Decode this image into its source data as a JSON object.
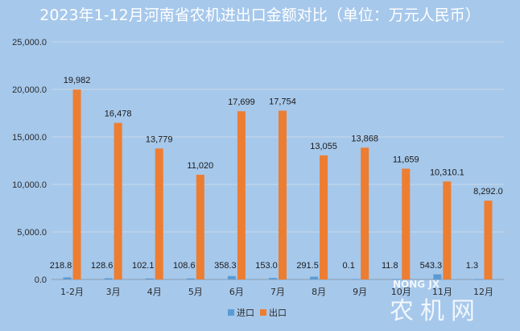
{
  "chart_data": {
    "type": "bar",
    "title": "2023年1-12月河南省农机进出口金额对比（单位：万元人民币）",
    "categories": [
      "1-2月",
      "3月",
      "4月",
      "5月",
      "6月",
      "7月",
      "8月",
      "9月",
      "10月",
      "11月",
      "12月"
    ],
    "series": [
      {
        "name": "进口",
        "color": "#5b9bd5",
        "values": [
          218.8,
          128.6,
          102.1,
          108.6,
          358.3,
          153.0,
          291.5,
          0.1,
          11.8,
          543.3,
          1.3
        ],
        "labels": [
          "218.8",
          "128.6",
          "102.1",
          "108.6",
          "358.3",
          "153.0",
          "291.5",
          "0.1",
          "11.8",
          "543.3",
          "1.3"
        ]
      },
      {
        "name": "出口",
        "color": "#ed7d31",
        "values": [
          19982,
          16478,
          13779,
          11020,
          17699,
          17754,
          13055,
          13868,
          11659,
          10310.1,
          8292.0
        ],
        "labels": [
          "19,982",
          "16,478",
          "13,779",
          "11,020",
          "17,699",
          "17,754",
          "13,055",
          "13,868",
          "11,659",
          "10,310.1",
          "8,292.0"
        ]
      }
    ],
    "ylim": [
      0,
      25000
    ],
    "yticks": [
      0,
      5000,
      10000,
      15000,
      20000,
      25000
    ],
    "ytick_labels": [
      "0.0",
      "5,000.0",
      "10,000.0",
      "15,000.0",
      "20,000.0",
      "25,000.0"
    ],
    "grid": true,
    "legend": "bottom"
  },
  "watermark": {
    "latin": "NONG JX",
    "chinese": "农机网"
  }
}
